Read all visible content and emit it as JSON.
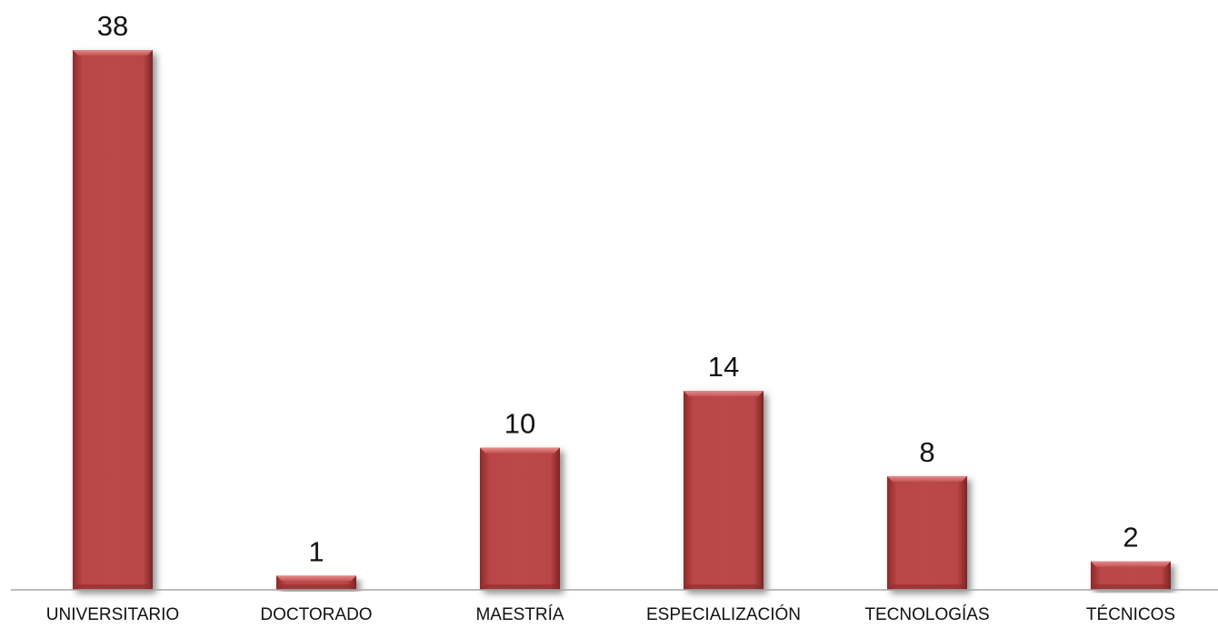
{
  "chart_data": {
    "type": "bar",
    "categories": [
      "UNIVERSITARIO",
      "DOCTORADO",
      "MAESTRÍA",
      "ESPECIALIZACIÓN",
      "TECNOLOGÍAS",
      "TÉCNICOS"
    ],
    "values": [
      38,
      1,
      10,
      14,
      8,
      2
    ],
    "data_labels": [
      "38",
      "1",
      "10",
      "14",
      "8",
      "2"
    ],
    "title": "",
    "xlabel": "",
    "ylabel": "",
    "ylim": [
      0,
      38
    ],
    "grid": false,
    "legend": "none",
    "y_axis_visible": false,
    "colors": {
      "bar": "#b94646",
      "bar_light": "#d46a6a",
      "bar_dark": "#7a1f1f",
      "axis": "#a6a6a6"
    }
  }
}
